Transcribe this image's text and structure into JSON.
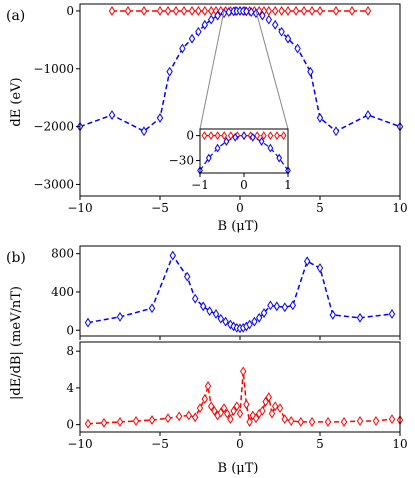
{
  "chart_data": [
    {
      "panel_label": "(a)",
      "type": "line",
      "xlabel": "B (μT)",
      "ylabel": "dE (eV)",
      "xlim": [
        -10,
        10
      ],
      "ylim": [
        -3200,
        120
      ],
      "xticks": [
        "−10",
        "−5",
        "0",
        "5",
        "10"
      ],
      "yticks": [
        "0",
        "−1000",
        "−2000",
        "−3000"
      ],
      "series": [
        {
          "color": "#0000ff",
          "marker": "diamond",
          "x": [
            -10,
            -8,
            -6,
            -5,
            -4.4,
            -3.6,
            -3,
            -2.6,
            -2.2,
            -1.8,
            -1.4,
            -1,
            -0.7,
            -0.4,
            -0.2,
            0,
            0.2,
            0.4,
            0.7,
            1,
            1.4,
            1.8,
            2.2,
            2.6,
            3,
            3.6,
            4.4,
            5,
            6,
            8,
            10
          ],
          "y": [
            -2000,
            -1800,
            -2080,
            -1850,
            -1050,
            -650,
            -480,
            -360,
            -240,
            -150,
            -80,
            -40,
            -20,
            -8,
            -3,
            0,
            -3,
            -8,
            -20,
            -40,
            -80,
            -150,
            -240,
            -360,
            -480,
            -650,
            -1050,
            -1850,
            -2080,
            -1800,
            -2000
          ]
        },
        {
          "color": "#ff0000",
          "marker": "diamond",
          "x": [
            -8,
            -7,
            -6,
            -5,
            -4.5,
            -4,
            -3.5,
            -3,
            -2.6,
            -2.2,
            -1.8,
            -1.5,
            -1.2,
            -0.9,
            -0.6,
            -0.3,
            0,
            0.3,
            0.6,
            0.9,
            1.2,
            1.5,
            1.8,
            2.2,
            2.6,
            3,
            3.5,
            4,
            4.5,
            5,
            6,
            7,
            8
          ],
          "y": [
            0,
            0,
            0,
            0,
            0,
            0,
            0,
            0,
            0,
            0,
            0,
            0,
            0,
            0,
            0,
            0,
            0,
            0,
            0,
            0,
            0,
            0,
            0,
            0,
            0,
            0,
            0,
            0,
            0,
            0,
            0,
            0,
            0
          ]
        }
      ],
      "inset": {
        "xlim": [
          -1,
          1
        ],
        "ylim": [
          -45,
          8
        ],
        "xticks": [
          "−1",
          "0",
          "1"
        ],
        "yticks": [
          "0",
          "−30"
        ],
        "blue": {
          "x": [
            -1,
            -0.8,
            -0.6,
            -0.4,
            -0.2,
            0,
            0.2,
            0.4,
            0.6,
            0.8,
            1
          ],
          "y": [
            -42,
            -27,
            -15,
            -7,
            -2,
            0,
            -2,
            -7,
            -15,
            -27,
            -42
          ]
        },
        "red": {
          "x": [
            -0.9,
            -0.75,
            -0.6,
            -0.45,
            -0.3,
            -0.15,
            0,
            0.15,
            0.3,
            0.45,
            0.6,
            0.75,
            0.9
          ],
          "y": [
            0,
            0,
            0,
            0,
            0,
            0,
            0,
            0,
            0,
            0,
            0,
            0,
            0
          ]
        }
      }
    },
    {
      "panel_label": "(b)",
      "type": "line",
      "xlabel": "B (μT)",
      "ylabel": "|dE/dB| (meV/nT)",
      "xlim": [
        -10,
        10
      ],
      "top": {
        "ylim": [
          -60,
          880
        ],
        "yticks": [
          "0",
          "400",
          "800"
        ],
        "color": "#0000ff",
        "marker": "diamond",
        "x": [
          -9.5,
          -7.5,
          -5.5,
          -4.2,
          -3.3,
          -2.8,
          -2.3,
          -1.9,
          -1.5,
          -1.2,
          -0.9,
          -0.6,
          -0.4,
          -0.2,
          0,
          0.2,
          0.4,
          0.6,
          0.9,
          1.2,
          1.5,
          1.9,
          2.3,
          2.8,
          3.3,
          4.2,
          5.0,
          5.8,
          7.5,
          9.5
        ],
        "y": [
          80,
          140,
          230,
          780,
          560,
          330,
          250,
          200,
          170,
          120,
          90,
          60,
          40,
          25,
          20,
          25,
          40,
          60,
          90,
          130,
          180,
          260,
          250,
          240,
          260,
          720,
          650,
          160,
          130,
          170
        ]
      },
      "bottom": {
        "ylim": [
          -0.8,
          9.0
        ],
        "yticks": [
          "0",
          "4",
          "8"
        ],
        "color": "#ff0000",
        "marker": "diamond",
        "x": [
          -9.5,
          -8.5,
          -7.5,
          -6.5,
          -5.5,
          -4.5,
          -3.8,
          -3.2,
          -2.8,
          -2.5,
          -2.2,
          -2.0,
          -1.8,
          -1.6,
          -1.4,
          -1.2,
          -1.0,
          -0.8,
          -0.6,
          -0.4,
          -0.2,
          0.0,
          0.2,
          0.4,
          0.6,
          0.8,
          1.0,
          1.2,
          1.4,
          1.6,
          1.8,
          2.0,
          2.2,
          2.5,
          2.8,
          3.2,
          3.8,
          4.5,
          5.5,
          6.5,
          7.5,
          8.5,
          9.5,
          10
        ],
        "y": [
          0.1,
          0.2,
          0.3,
          0.4,
          0.5,
          0.7,
          0.9,
          1.0,
          0.8,
          1.8,
          2.8,
          4.2,
          2.0,
          1.5,
          1.0,
          1.3,
          1.8,
          1.2,
          0.6,
          1.5,
          2.0,
          1.2,
          5.8,
          2.2,
          0.3,
          1.0,
          0.7,
          1.2,
          1.5,
          2.5,
          3.0,
          1.2,
          2.0,
          1.8,
          0.6,
          0.4,
          0.3,
          0.3,
          0.3,
          0.3,
          0.4,
          0.4,
          0.6,
          0.5
        ]
      }
    }
  ]
}
